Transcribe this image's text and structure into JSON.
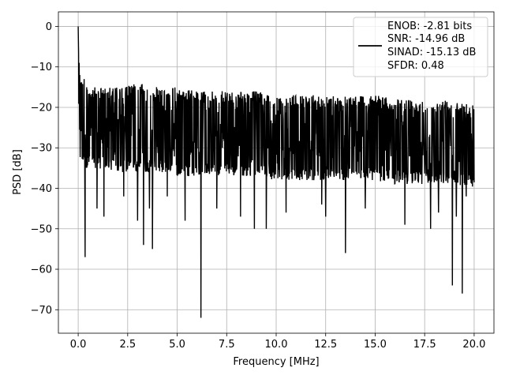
{
  "chart_data": {
    "type": "line",
    "title": "",
    "xlabel": "Frequency [MHz]",
    "ylabel": "PSD [dB]",
    "xlim": [
      -1.0,
      21.0
    ],
    "ylim": [
      -75.8,
      3.6
    ],
    "xticks": [
      0.0,
      2.5,
      5.0,
      7.5,
      10.0,
      12.5,
      15.0,
      17.5,
      20.0
    ],
    "xtick_labels": [
      "0.0",
      "2.5",
      "5.0",
      "7.5",
      "10.0",
      "12.5",
      "15.0",
      "17.5",
      "20.0"
    ],
    "yticks": [
      0,
      -10,
      -20,
      -30,
      -40,
      -50,
      -60,
      -70
    ],
    "ytick_labels": [
      "0",
      "−10",
      "−20",
      "−30",
      "−40",
      "−50",
      "−60",
      "−70"
    ],
    "grid": true,
    "legend_position": "top-right",
    "legend_lines": [
      "ENOB: -2.81 bits",
      "SNR: -14.96 dB",
      "SINAD: -15.13 dB",
      "SFDR: 0.48"
    ],
    "series": [
      {
        "color": "#000000",
        "upper_envelope": {
          "x": [
            0.0,
            0.1,
            0.3,
            0.5,
            1.0,
            2.0,
            3.0,
            4.0,
            5.0,
            6.0,
            7.0,
            8.0,
            9.0,
            10.0,
            11.0,
            12.0,
            13.0,
            14.0,
            15.0,
            16.0,
            17.0,
            18.0,
            19.0,
            20.0
          ],
          "y": [
            -14,
            -12,
            -14,
            -15,
            -15,
            -15,
            -14,
            -15,
            -15,
            -16,
            -16,
            -16,
            -16,
            -17,
            -17,
            -17,
            -17,
            -17,
            -17,
            -18,
            -18,
            -18,
            -18,
            -19
          ]
        },
        "lower_envelope": {
          "x": [
            0.0,
            0.1,
            0.3,
            0.5,
            1.0,
            2.0,
            3.0,
            4.0,
            5.0,
            6.0,
            7.0,
            8.0,
            9.0,
            10.0,
            11.0,
            12.0,
            13.0,
            14.0,
            15.0,
            16.0,
            17.0,
            18.0,
            19.0,
            20.0
          ],
          "y": [
            -30,
            -33,
            -35,
            -35,
            -35,
            -36,
            -36,
            -36,
            -37,
            -37,
            -37,
            -37,
            -37,
            -38,
            -38,
            -38,
            -38,
            -38,
            -38,
            -39,
            -39,
            -39,
            -39,
            -40
          ]
        },
        "peaks": [
          {
            "x": 0.0,
            "y": 0.0
          },
          {
            "x": 0.02,
            "y": -6.5
          },
          {
            "x": 0.05,
            "y": -9.0
          },
          {
            "x": 0.08,
            "y": -12.0
          },
          {
            "x": 0.12,
            "y": -14.0
          },
          {
            "x": 0.3,
            "y": -13.0
          }
        ],
        "dips": [
          {
            "x": 0.35,
            "y": -57.0
          },
          {
            "x": 0.95,
            "y": -45.0
          },
          {
            "x": 1.3,
            "y": -47.0
          },
          {
            "x": 2.3,
            "y": -42.0
          },
          {
            "x": 3.0,
            "y": -48.0
          },
          {
            "x": 3.3,
            "y": -54.0
          },
          {
            "x": 3.6,
            "y": -45.0
          },
          {
            "x": 3.75,
            "y": -55.0
          },
          {
            "x": 4.5,
            "y": -42.0
          },
          {
            "x": 5.4,
            "y": -48.0
          },
          {
            "x": 6.2,
            "y": -72.0
          },
          {
            "x": 7.0,
            "y": -45.0
          },
          {
            "x": 8.2,
            "y": -47.0
          },
          {
            "x": 8.9,
            "y": -50.0
          },
          {
            "x": 9.5,
            "y": -50.0
          },
          {
            "x": 10.5,
            "y": -46.0
          },
          {
            "x": 12.3,
            "y": -44.0
          },
          {
            "x": 12.5,
            "y": -47.0
          },
          {
            "x": 13.5,
            "y": -56.0
          },
          {
            "x": 14.5,
            "y": -45.0
          },
          {
            "x": 16.5,
            "y": -49.0
          },
          {
            "x": 17.8,
            "y": -50.0
          },
          {
            "x": 18.2,
            "y": -46.0
          },
          {
            "x": 18.9,
            "y": -64.0
          },
          {
            "x": 19.1,
            "y": -47.0
          },
          {
            "x": 19.4,
            "y": -66.0
          },
          {
            "x": 19.6,
            "y": -42.0
          }
        ]
      }
    ]
  }
}
